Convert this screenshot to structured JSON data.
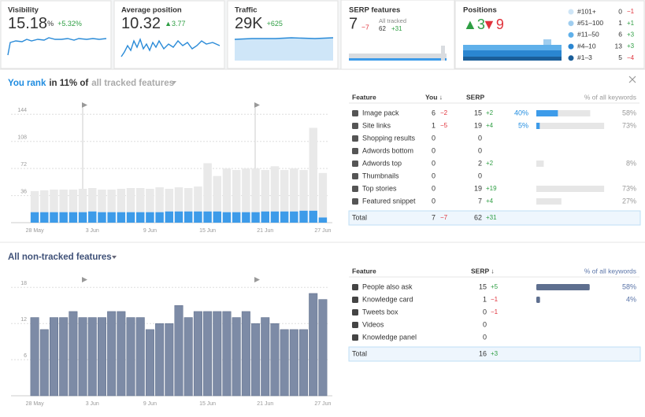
{
  "metrics": [
    {
      "label": "Visibility",
      "value": "15.18",
      "unit": "%",
      "delta": "+5.32%"
    },
    {
      "label": "Average position",
      "value": "10.32",
      "delta": "▲3.77"
    },
    {
      "label": "Traffic",
      "value": "29K",
      "delta": "+625"
    }
  ],
  "serp_card": {
    "label": "SERP features",
    "value": "7",
    "delta": "−7",
    "sub_label": "All tracked",
    "sub_value": "62",
    "sub_delta": "+31"
  },
  "positions_card": {
    "label": "Positions",
    "up": "▲3",
    "down": "▼9",
    "legend": [
      {
        "label": "#101+",
        "count": "0",
        "delta": "−1",
        "color": "#cfe5f6"
      },
      {
        "label": "#51–100",
        "count": "1",
        "delta": "+1",
        "color": "#9fcdef"
      },
      {
        "label": "#11–50",
        "count": "6",
        "delta": "+3",
        "color": "#5fb0ea"
      },
      {
        "label": "#4–10",
        "count": "13",
        "delta": "+3",
        "color": "#2a86d1"
      },
      {
        "label": "#1–3",
        "count": "5",
        "delta": "−4",
        "color": "#1b5e99"
      }
    ]
  },
  "tracked_heading": {
    "highlight": "You rank",
    "text": "in 11% of",
    "link": "all tracked features"
  },
  "non_tracked_heading": {
    "text": "All non-tracked features"
  },
  "chart_data": [
    {
      "type": "bar",
      "stacked": true,
      "grid": true,
      "categories": [
        "28 May",
        null,
        null,
        null,
        null,
        null,
        "3 Jun",
        null,
        null,
        null,
        null,
        null,
        "9 Jun",
        null,
        null,
        null,
        null,
        null,
        "15 Jun",
        null,
        null,
        null,
        null,
        null,
        "21 Jun",
        null,
        null,
        null,
        null,
        null,
        "27 Jun"
      ],
      "series": [
        {
          "color": "#3d9be9",
          "values": [
            14,
            14,
            14,
            14,
            14,
            14,
            15,
            14,
            14,
            14,
            14,
            14,
            14,
            14,
            15,
            15,
            15,
            15,
            15,
            15,
            14,
            14,
            14,
            14,
            15,
            15,
            15,
            15,
            16,
            16,
            7
          ]
        },
        {
          "color": "#e9e9e9",
          "values": [
            28,
            29,
            30,
            30,
            30,
            31,
            31,
            30,
            30,
            31,
            32,
            32,
            31,
            33,
            30,
            32,
            31,
            33,
            64,
            47,
            58,
            56,
            58,
            58,
            55,
            60,
            55,
            57,
            54,
            110,
            59
          ]
        }
      ],
      "ylim": [
        0,
        160
      ],
      "yticks": [
        36,
        72,
        108,
        144
      ]
    },
    {
      "type": "bar",
      "grid": true,
      "categories": [
        "28 May",
        null,
        null,
        null,
        null,
        null,
        "3 Jun",
        null,
        null,
        null,
        null,
        null,
        "9 Jun",
        null,
        null,
        null,
        null,
        null,
        "15 Jun",
        null,
        null,
        null,
        null,
        null,
        "21 Jun",
        null,
        null,
        null,
        null,
        null,
        "27 Jun"
      ],
      "values": [
        13,
        11,
        13,
        13,
        14,
        13,
        13,
        13,
        14,
        14,
        13,
        13,
        11,
        12,
        12,
        15,
        13,
        14,
        14,
        14,
        14,
        13,
        14,
        12,
        13,
        12,
        11,
        11,
        11,
        17,
        16
      ],
      "color": "#7d8ba6",
      "ylim": [
        0,
        20
      ],
      "yticks": [
        6,
        12,
        18
      ]
    }
  ],
  "tracked_table": {
    "headers": [
      "Feature",
      "You ↓",
      "SERP",
      "% of all keywords"
    ],
    "rows": [
      {
        "feature": "Image pack",
        "you": 6,
        "you_delta": "−2",
        "serp": 15,
        "serp_delta": "+2",
        "you_pct": 40,
        "you_pct_label": "40%",
        "pct": 58,
        "pct_label": "58%"
      },
      {
        "feature": "Site links",
        "you": 1,
        "you_delta": "−5",
        "serp": 19,
        "serp_delta": "+4",
        "you_pct": 5,
        "you_pct_label": "5%",
        "pct": 73,
        "pct_label": "73%"
      },
      {
        "feature": "Shopping results",
        "you": 0,
        "serp": 0
      },
      {
        "feature": "Adwords bottom",
        "you": 0,
        "serp": 0
      },
      {
        "feature": "Adwords top",
        "you": 0,
        "serp": 2,
        "serp_delta": "+2",
        "pct": 8,
        "pct_label": "8%"
      },
      {
        "feature": "Thumbnails",
        "you": 0,
        "serp": 0
      },
      {
        "feature": "Top stories",
        "you": 0,
        "serp": 19,
        "serp_delta": "+19",
        "pct": 73,
        "pct_label": "73%"
      },
      {
        "feature": "Featured snippet",
        "you": 0,
        "serp": 7,
        "serp_delta": "+4",
        "pct": 27,
        "pct_label": "27%"
      }
    ],
    "total": {
      "label": "Total",
      "you": 7,
      "you_delta": "−7",
      "serp": 62,
      "serp_delta": "+31"
    }
  },
  "non_tracked_table": {
    "headers": [
      "Feature",
      "SERP ↓",
      "% of all keywords"
    ],
    "rows": [
      {
        "feature": "People also ask",
        "serp": 15,
        "serp_delta": "+5",
        "pct": 58,
        "pct_label": "58%"
      },
      {
        "feature": "Knowledge card",
        "serp": 1,
        "serp_delta": "−1",
        "pct": 4,
        "pct_label": "4%"
      },
      {
        "feature": "Tweets box",
        "serp": 0,
        "serp_delta": "−1"
      },
      {
        "feature": "Videos",
        "serp": 0
      },
      {
        "feature": "Knowledge panel",
        "serp": 0
      }
    ],
    "total": {
      "label": "Total",
      "serp": 16,
      "serp_delta": "+3"
    }
  }
}
